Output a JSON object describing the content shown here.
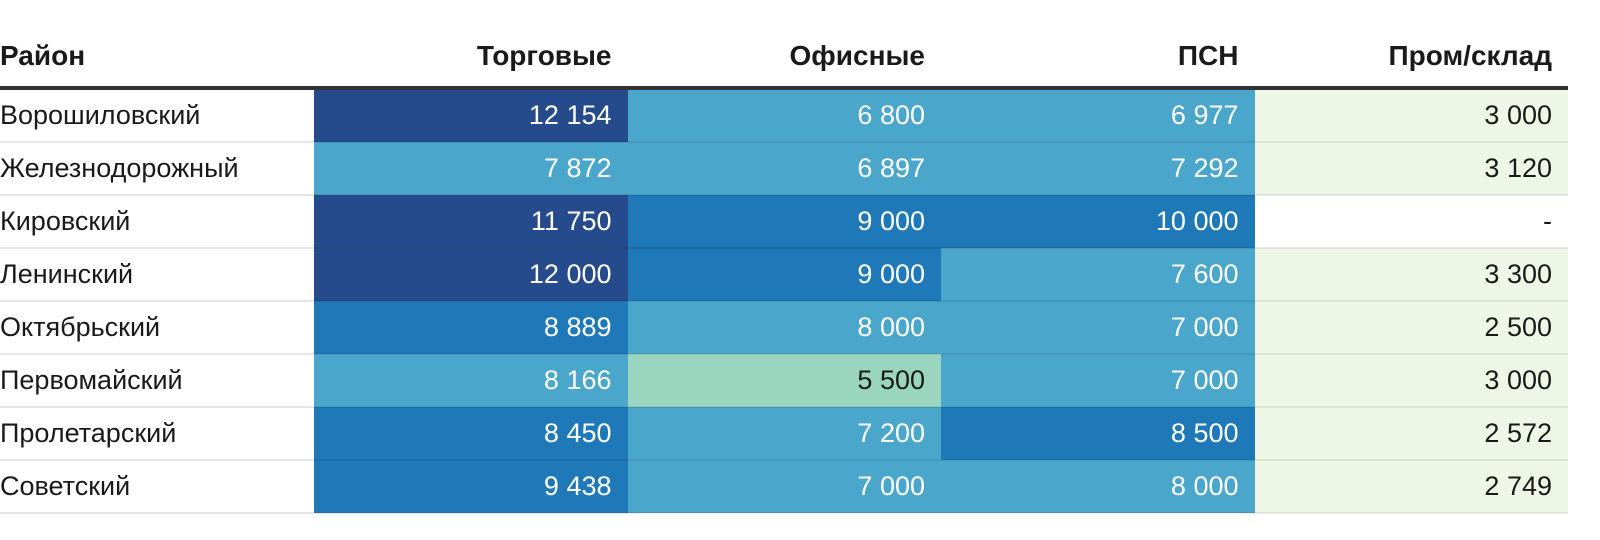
{
  "chart_data": {
    "type": "table",
    "columns": [
      "Район",
      "Торговые",
      "Офисные",
      "ПСН",
      "Пром/склад"
    ],
    "rows": [
      {
        "district": "Ворошиловский",
        "values": [
          "12 154",
          "6 800",
          "6 977",
          "3 000"
        ]
      },
      {
        "district": "Железнодорожный",
        "values": [
          "7 872",
          "6 897",
          "7 292",
          "3 120"
        ]
      },
      {
        "district": "Кировский",
        "values": [
          "11 750",
          "9 000",
          "10 000",
          "-"
        ]
      },
      {
        "district": "Ленинский",
        "values": [
          "12 000",
          "9 000",
          "7 600",
          "3 300"
        ]
      },
      {
        "district": "Октябрьский",
        "values": [
          "8 889",
          "8 000",
          "7 000",
          "2 500"
        ]
      },
      {
        "district": "Первомайский",
        "values": [
          "8 166",
          "5 500",
          "7 000",
          "3 000"
        ]
      },
      {
        "district": "Пролетарский",
        "values": [
          "8 450",
          "7 200",
          "8 500",
          "2 572"
        ]
      },
      {
        "district": "Советский",
        "values": [
          "9 438",
          "7 000",
          "8 000",
          "2 749"
        ]
      }
    ],
    "color_scale": {
      "light_green": "#eef7e6",
      "mint": "#99d5bf",
      "light_blue": "#4aa6cb",
      "blue": "#1f78b7",
      "dark_blue": "#264b8c",
      "empty": "#ffffff"
    },
    "text_colors": {
      "on_dark": "#ffffff",
      "on_light": "#1a1a1a"
    }
  }
}
